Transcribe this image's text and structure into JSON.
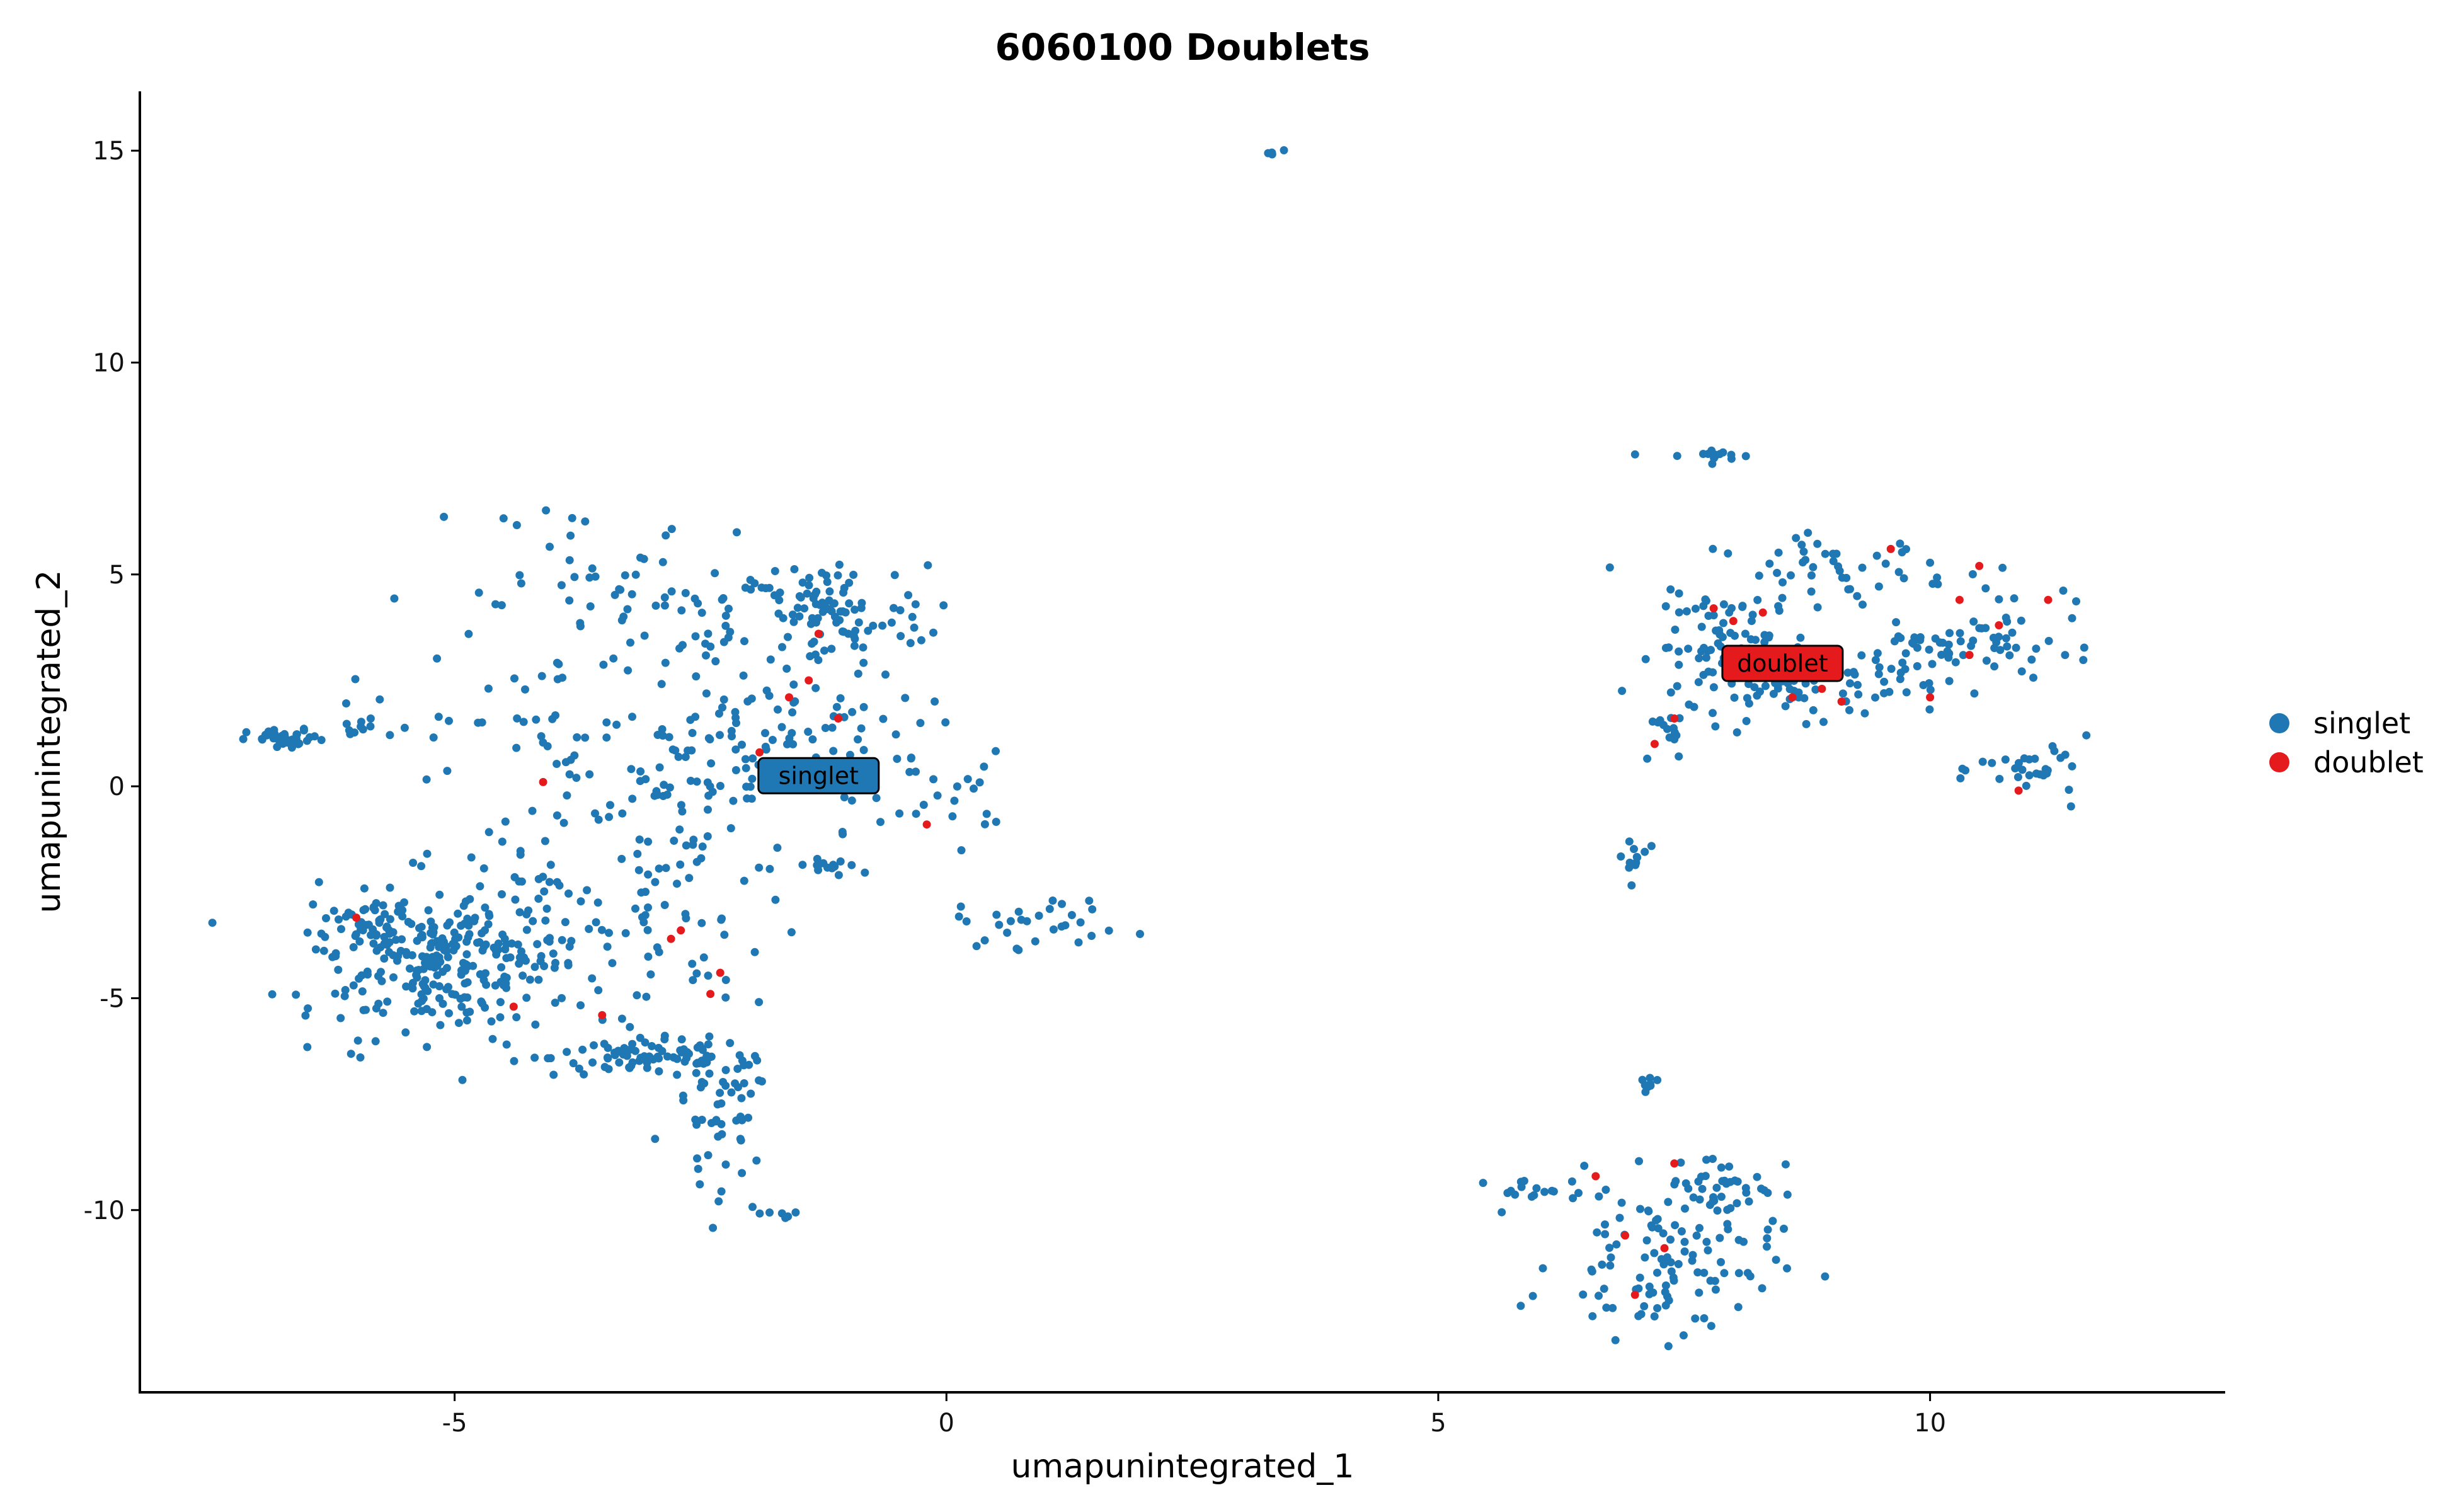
{
  "chart_data": {
    "type": "scatter",
    "title": "6060100 Doublets",
    "xlabel": "umapunintegrated_1",
    "ylabel": "umapunintegrated_2",
    "xlim": [
      -8.2,
      13
    ],
    "ylim": [
      -14.3,
      16.4
    ],
    "xticks": [
      -5,
      0,
      5,
      10
    ],
    "yticks": [
      -10,
      -5,
      0,
      5,
      10,
      15
    ],
    "grid": false,
    "legend_position": "right",
    "series": [
      {
        "name": "singlet",
        "color": "#1F77B4",
        "cluster_label": {
          "text": "singlet",
          "x": -1.3,
          "y": 0.25
        },
        "clusters": [
          {
            "cx": -5.2,
            "cy": -4.2,
            "sx": 0.65,
            "sy": 0.85,
            "n": 230
          },
          {
            "cx": -5.9,
            "cy": -3.2,
            "sx": 0.3,
            "sy": 0.35,
            "n": 40
          },
          {
            "cx": -4.2,
            "cy": -3.2,
            "sx": 0.7,
            "sy": 1.1,
            "n": 90
          },
          {
            "cx": -3.0,
            "cy": -6.4,
            "sx": 0.5,
            "sy": 0.22,
            "n": 80
          },
          {
            "cx": -2.3,
            "cy": -7.6,
            "sx": 0.25,
            "sy": 0.8,
            "n": 45
          },
          {
            "cx": -2.5,
            "cy": -2.2,
            "sx": 0.6,
            "sy": 1.6,
            "n": 70
          },
          {
            "cx": -3.2,
            "cy": 0.1,
            "sx": 0.9,
            "sy": 0.7,
            "n": 50
          },
          {
            "cx": -1.2,
            "cy": 4.0,
            "sx": 0.5,
            "sy": 0.6,
            "n": 90
          },
          {
            "cx": -2.7,
            "cy": 4.2,
            "sx": 1.0,
            "sy": 1.0,
            "n": 70
          },
          {
            "cx": -3.8,
            "cy": 5.6,
            "sx": 0.5,
            "sy": 0.7,
            "n": 20
          },
          {
            "cx": -1.9,
            "cy": 1.2,
            "sx": 0.8,
            "sy": 0.8,
            "n": 90
          },
          {
            "cx": -4.8,
            "cy": 1.7,
            "sx": 0.6,
            "sy": 0.6,
            "n": 20
          },
          {
            "cx": -6.7,
            "cy": 1.1,
            "sx": 0.2,
            "sy": 0.12,
            "n": 40
          },
          {
            "cx": -6.0,
            "cy": 1.35,
            "sx": 0.15,
            "sy": 0.15,
            "n": 10
          },
          {
            "cx": -1.1,
            "cy": -1.9,
            "sx": 0.25,
            "sy": 0.12,
            "n": 15
          },
          {
            "cx": 0.0,
            "cy": -0.2,
            "sx": 0.3,
            "sy": 0.5,
            "n": 20
          },
          {
            "cx": 1.0,
            "cy": -3.2,
            "sx": 0.45,
            "sy": 0.3,
            "n": 30
          },
          {
            "cx": -1.7,
            "cy": -10.1,
            "sx": 0.18,
            "sy": 0.05,
            "n": 6
          },
          {
            "cx": -2.4,
            "cy": -9.3,
            "sx": 0.2,
            "sy": 0.6,
            "n": 10
          },
          {
            "cx": 3.3,
            "cy": 14.95,
            "sx": 0.05,
            "sy": 0.05,
            "n": 5
          },
          {
            "cx": 7.75,
            "cy": 7.8,
            "sx": 0.25,
            "sy": 0.08,
            "n": 14
          },
          {
            "cx": 8.0,
            "cy": 3.3,
            "sx": 0.4,
            "sy": 0.6,
            "n": 80
          },
          {
            "cx": 9.0,
            "cy": 5.1,
            "sx": 0.6,
            "sy": 0.4,
            "n": 50
          },
          {
            "cx": 8.8,
            "cy": 2.3,
            "sx": 0.6,
            "sy": 0.35,
            "n": 70
          },
          {
            "cx": 10.2,
            "cy": 3.2,
            "sx": 0.5,
            "sy": 0.3,
            "n": 50
          },
          {
            "cx": 10.9,
            "cy": 3.8,
            "sx": 0.4,
            "sy": 0.5,
            "n": 20
          },
          {
            "cx": 11.1,
            "cy": 0.4,
            "sx": 0.3,
            "sy": 0.35,
            "n": 30
          },
          {
            "cx": 7.3,
            "cy": 1.2,
            "sx": 0.15,
            "sy": 0.4,
            "n": 15
          },
          {
            "cx": 7.0,
            "cy": -1.7,
            "sx": 0.1,
            "sy": 0.3,
            "n": 12
          },
          {
            "cx": 7.3,
            "cy": -11.2,
            "sx": 0.55,
            "sy": 0.9,
            "n": 110
          },
          {
            "cx": 5.9,
            "cy": -9.5,
            "sx": 0.25,
            "sy": 0.12,
            "n": 15
          },
          {
            "cx": 7.9,
            "cy": -9.4,
            "sx": 0.3,
            "sy": 0.4,
            "n": 40
          },
          {
            "cx": 7.1,
            "cy": -7.2,
            "sx": 0.06,
            "sy": 0.25,
            "n": 8
          }
        ]
      },
      {
        "name": "doublet",
        "color": "#E41A1C",
        "cluster_label": {
          "text": "doublet",
          "x": 8.5,
          "y": 2.9
        },
        "points": [
          [
            -6.0,
            -3.1
          ],
          [
            -4.4,
            -5.2
          ],
          [
            -4.1,
            0.1
          ],
          [
            -3.5,
            -5.4
          ],
          [
            -2.7,
            -3.4
          ],
          [
            -2.8,
            -3.6
          ],
          [
            -2.4,
            -4.9
          ],
          [
            -2.3,
            -4.4
          ],
          [
            -1.3,
            3.6
          ],
          [
            -1.6,
            2.1
          ],
          [
            -1.4,
            2.5
          ],
          [
            -1.1,
            1.6
          ],
          [
            -1.9,
            0.8
          ],
          [
            -0.2,
            -0.9
          ],
          [
            7.4,
            1.6
          ],
          [
            7.2,
            1.0
          ],
          [
            7.8,
            4.2
          ],
          [
            8.0,
            3.9
          ],
          [
            8.3,
            4.1
          ],
          [
            8.6,
            2.1
          ],
          [
            8.9,
            2.3
          ],
          [
            9.1,
            2.0
          ],
          [
            9.6,
            5.6
          ],
          [
            10.3,
            4.4
          ],
          [
            10.5,
            5.2
          ],
          [
            10.7,
            3.8
          ],
          [
            10.4,
            3.1
          ],
          [
            10.0,
            2.1
          ],
          [
            11.2,
            4.4
          ],
          [
            10.9,
            -0.1
          ],
          [
            6.6,
            -9.2
          ],
          [
            6.9,
            -10.6
          ],
          [
            7.3,
            -10.9
          ],
          [
            7.4,
            -8.9
          ],
          [
            7.0,
            -12.0
          ]
        ]
      }
    ]
  }
}
